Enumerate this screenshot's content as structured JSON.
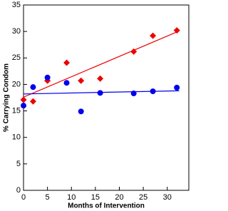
{
  "chart_data": {
    "type": "scatter",
    "xlabel": "Months of Intervention",
    "ylabel": "% Carrying Condom",
    "xlim": [
      0,
      34.5
    ],
    "ylim": [
      0,
      35
    ],
    "xticks": [
      0,
      5,
      10,
      15,
      20,
      25,
      30
    ],
    "yticks": [
      0,
      5,
      10,
      15,
      20,
      25,
      30,
      35
    ],
    "series": [
      {
        "color": "#ee0000",
        "marker": "diamond",
        "x": [
          0,
          2,
          5,
          9,
          12,
          16,
          23,
          27,
          32
        ],
        "values": [
          17.1,
          16.8,
          20.7,
          24.1,
          20.7,
          21.1,
          26.2,
          29.2,
          30.2
        ]
      },
      {
        "color": "#0000ee",
        "marker": "circle",
        "x": [
          0,
          2,
          5,
          9,
          12,
          16,
          23,
          27,
          32
        ],
        "values": [
          16.0,
          19.5,
          21.3,
          20.3,
          14.9,
          18.4,
          18.3,
          18.7,
          19.4
        ]
      }
    ],
    "trendlines": [
      {
        "color": "#ee0000",
        "x": [
          0,
          32.5
        ],
        "values": [
          17.6,
          30.1
        ]
      },
      {
        "color": "#0000ee",
        "x": [
          0,
          32.5
        ],
        "values": [
          18.2,
          18.8
        ]
      }
    ]
  }
}
